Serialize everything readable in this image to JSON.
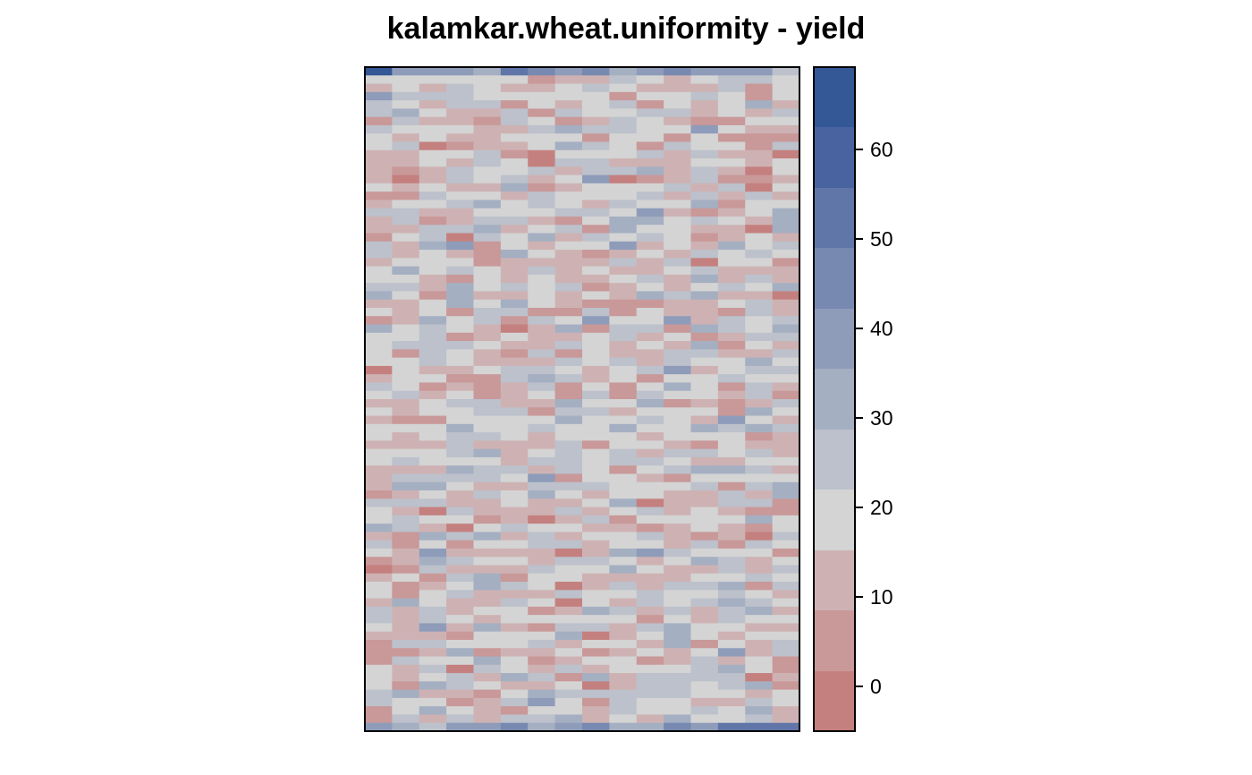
{
  "chart_data": {
    "type": "heatmap",
    "title": "kalamkar.wheat.uniformity - yield",
    "n_cols": 16,
    "n_rows": 80,
    "colorbar": {
      "ticks": [
        0,
        10,
        20,
        30,
        40,
        50,
        60
      ],
      "range": [
        -5,
        69
      ],
      "breaks": [
        -5,
        1.7,
        8.5,
        15.2,
        22,
        28.7,
        35.5,
        42.2,
        49,
        55.7,
        62.5,
        69.2
      ],
      "colors": [
        "#c4807f",
        "#c99899",
        "#ceb2b3",
        "#d4d4d4",
        "#bcc1cb",
        "#a5afc2",
        "#8e9cba",
        "#7789b1",
        "#6076a8",
        "#4863a0",
        "#345796"
      ]
    },
    "values_note": "",
    "values": []
  }
}
